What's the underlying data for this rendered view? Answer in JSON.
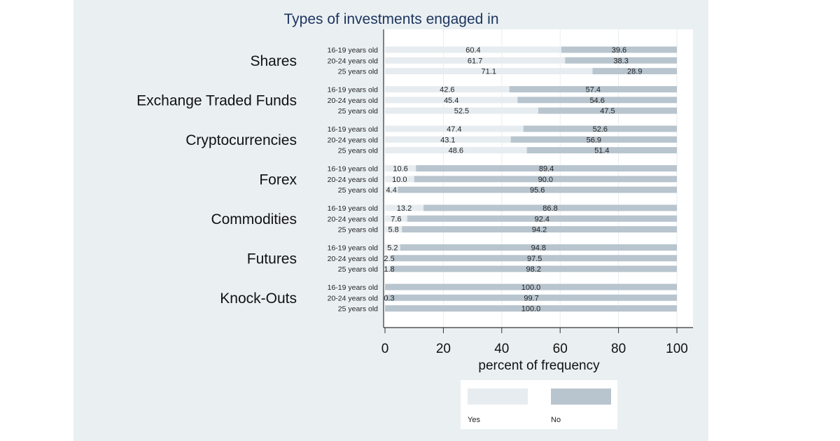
{
  "chart_data": {
    "type": "bar",
    "orientation": "horizontal",
    "stacked": true,
    "title": "Types of investments engaged in",
    "xlabel": "percent of frequency",
    "xlim": [
      0,
      100
    ],
    "xticks": [
      0,
      20,
      40,
      60,
      80,
      100
    ],
    "grid": true,
    "legend_position": "bottom",
    "subcategories": [
      "16-19 years old",
      "20-24 years old",
      "25 years old"
    ],
    "groups": [
      {
        "name": "Shares",
        "yes": [
          60.4,
          61.7,
          71.1
        ],
        "no": [
          39.6,
          38.3,
          28.9
        ]
      },
      {
        "name": "Exchange Traded Funds",
        "yes": [
          42.6,
          45.4,
          52.5
        ],
        "no": [
          57.4,
          54.6,
          47.5
        ]
      },
      {
        "name": "Cryptocurrencies",
        "yes": [
          47.4,
          43.1,
          48.6
        ],
        "no": [
          52.6,
          56.9,
          51.4
        ]
      },
      {
        "name": "Forex",
        "yes": [
          10.6,
          10.0,
          4.4
        ],
        "no": [
          89.4,
          90.0,
          95.6
        ]
      },
      {
        "name": "Commodities",
        "yes": [
          13.2,
          7.6,
          5.8
        ],
        "no": [
          86.8,
          92.4,
          94.2
        ]
      },
      {
        "name": "Futures",
        "yes": [
          5.2,
          2.5,
          1.8
        ],
        "no": [
          94.8,
          97.5,
          98.2
        ]
      },
      {
        "name": "Knock-Outs",
        "yes": [
          0,
          0.3,
          0
        ],
        "no": [
          100.0,
          99.7,
          100.0
        ]
      }
    ],
    "series": [
      {
        "name": "Yes",
        "color": "#e6ecf0"
      },
      {
        "name": "No",
        "color": "#b8c5cf"
      }
    ]
  }
}
